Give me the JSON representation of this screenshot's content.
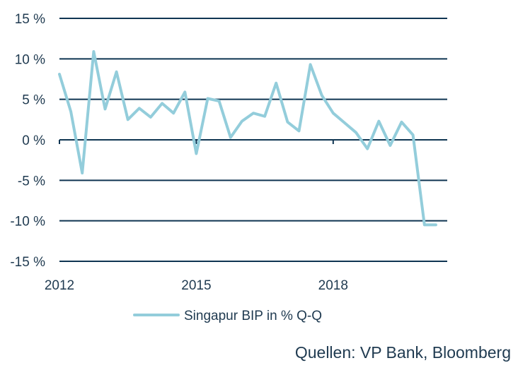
{
  "chart_data": {
    "type": "line",
    "title": "",
    "xlabel": "",
    "ylabel": "",
    "ylim": [
      -15,
      15
    ],
    "y_ticks": [
      15,
      10,
      5,
      0,
      -5,
      -10,
      -15
    ],
    "y_tick_labels": [
      "15 %",
      "10 %",
      "5 %",
      "0 %",
      "-5 %",
      "-10 %",
      "-15 %"
    ],
    "x_range": [
      2012.0,
      2020.5
    ],
    "x_ticks": [
      2012,
      2015,
      2018
    ],
    "x_tick_labels": [
      "2012",
      "2015",
      "2018"
    ],
    "grid": true,
    "legend_position": "bottom-center",
    "series": [
      {
        "name": "Singapur BIP in % Q-Q",
        "color": "#93cddb",
        "x": [
          2012.0,
          2012.25,
          2012.5,
          2012.75,
          2013.0,
          2013.25,
          2013.5,
          2013.75,
          2014.0,
          2014.25,
          2014.5,
          2014.75,
          2015.0,
          2015.25,
          2015.5,
          2015.75,
          2016.0,
          2016.25,
          2016.5,
          2016.75,
          2017.0,
          2017.25,
          2017.5,
          2017.75,
          2018.0,
          2018.25,
          2018.5,
          2018.75,
          2019.0,
          2019.25,
          2019.5,
          2019.75,
          2020.0,
          2020.25
        ],
        "values": [
          8.1,
          3.5,
          -4.1,
          10.9,
          3.8,
          8.4,
          2.5,
          3.9,
          2.8,
          4.5,
          3.3,
          5.9,
          -1.7,
          5.1,
          4.8,
          0.3,
          2.3,
          3.3,
          2.9,
          7.0,
          2.2,
          1.1,
          9.3,
          5.5,
          3.3,
          2.1,
          0.9,
          -1.1,
          2.3,
          -0.7,
          2.2,
          0.6,
          -10.5,
          -10.5
        ]
      }
    ]
  },
  "source_text": "Quellen: VP Bank, Bloomberg"
}
